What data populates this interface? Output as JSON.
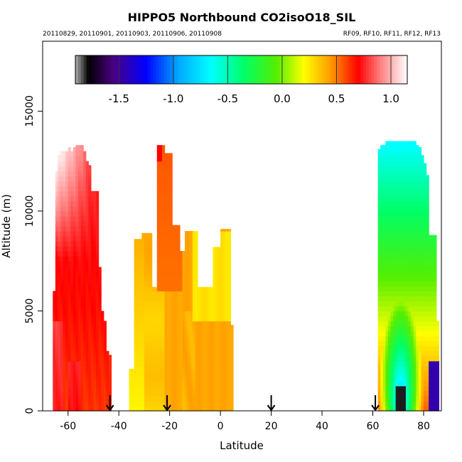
{
  "chart_data": {
    "type": "heatmap",
    "title": "HIPPO5 Northbound CO2isoO18_SIL",
    "subtitle_left": "20110829, 20110901, 20110903, 20110906, 20110908",
    "subtitle_right": "RF09, RF10, RF11, RF12, RF13",
    "xlabel": "Latitude",
    "ylabel": "Altitude (m)",
    "xlim": [
      -70,
      87
    ],
    "ylim": [
      0,
      18500
    ],
    "x_ticks": [
      -60,
      -40,
      -20,
      0,
      20,
      40,
      60,
      80
    ],
    "y_ticks": [
      0,
      5000,
      10000,
      15000
    ],
    "colorbar": {
      "range": [
        -1.9,
        1.15
      ],
      "ticks": [
        -1.5,
        -1.0,
        -0.5,
        0.0,
        0.5,
        1.0
      ],
      "tick_labels": [
        "-1.5",
        "-1.0",
        "-0.5",
        "0.0",
        "0.5",
        "1.0"
      ],
      "stops": [
        {
          "v": -1.9,
          "c": "#b0b0b0"
        },
        {
          "v": -1.78,
          "c": "#000000"
        },
        {
          "v": -1.55,
          "c": "#4b0082"
        },
        {
          "v": -1.25,
          "c": "#0000ff"
        },
        {
          "v": -0.95,
          "c": "#00aaff"
        },
        {
          "v": -0.65,
          "c": "#00ffff"
        },
        {
          "v": -0.35,
          "c": "#00ff66"
        },
        {
          "v": -0.05,
          "c": "#55ee00"
        },
        {
          "v": 0.2,
          "c": "#ffff00"
        },
        {
          "v": 0.45,
          "c": "#ff9900"
        },
        {
          "v": 0.7,
          "c": "#ff0000"
        },
        {
          "v": 0.9,
          "c": "#ff7f7f"
        },
        {
          "v": 1.15,
          "c": "#ffffff"
        }
      ]
    },
    "markers": [
      {
        "lat": -43.5,
        "label": "arrow"
      },
      {
        "lat": -21,
        "label": "arrow"
      },
      {
        "lat": 20,
        "label": "arrow"
      },
      {
        "lat": 61,
        "label": "arrow"
      }
    ],
    "regions": [
      {
        "name": "southern-ocean",
        "lat_start": -66,
        "lat_step": 1,
        "top_alt": [
          6000,
          12000,
          12800,
          13000,
          13000,
          13000,
          13200,
          13000,
          13200,
          13300,
          13300,
          13300,
          13000,
          12500,
          12300,
          11000,
          11000,
          11000,
          7200,
          5000,
          4500,
          3000,
          2800
        ],
        "model": "south"
      },
      {
        "name": "tropics-south",
        "lat_start": -36,
        "lat_step": 1,
        "top_alt": [
          2100,
          2100,
          8600,
          8600,
          8600,
          8900,
          8900,
          8900,
          8900,
          6200,
          6200,
          13300,
          13300,
          13300,
          12900,
          12900,
          12900,
          9300,
          9300,
          9300,
          8000,
          8000,
          9000,
          9000,
          9000,
          9000,
          9000,
          6200,
          6200,
          6200,
          6200,
          6200,
          6200,
          8200,
          8200,
          8200,
          9100,
          9100,
          9100,
          9100,
          4300
        ],
        "model": "tropics"
      },
      {
        "name": "arctic",
        "lat_start": 62,
        "lat_step": 1,
        "top_alt": [
          13100,
          13300,
          13300,
          13500,
          13500,
          13500,
          13500,
          13500,
          13500,
          13500,
          13500,
          13500,
          13500,
          13500,
          13500,
          13300,
          13200,
          12800,
          12400,
          11800,
          8800,
          8800,
          8800,
          4500
        ],
        "model": "arctic"
      }
    ]
  }
}
